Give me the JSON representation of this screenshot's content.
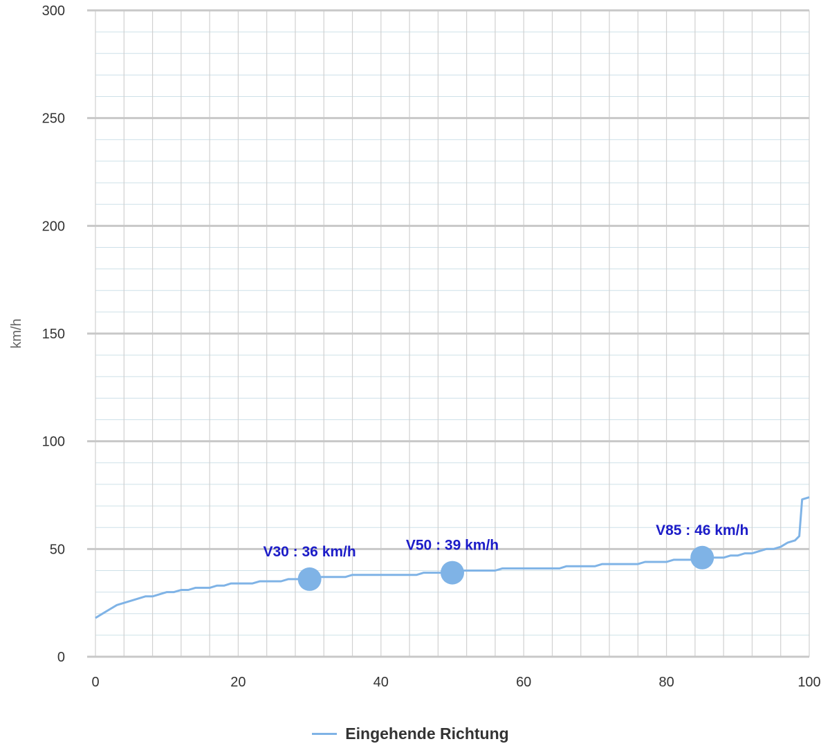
{
  "chart_data": {
    "type": "line",
    "title": "",
    "xlabel": "",
    "ylabel": "km/h",
    "xlim": [
      0,
      100
    ],
    "ylim": [
      0,
      300
    ],
    "x_ticks": [
      "0",
      "20",
      "40",
      "60",
      "80",
      "100"
    ],
    "y_ticks": [
      "0",
      "50",
      "100",
      "150",
      "200",
      "250",
      "300"
    ],
    "grid": true,
    "legend_position": "bottom",
    "series": [
      {
        "name": "Eingehende Richtung",
        "color": "#7fb3e6",
        "x": [
          0,
          1,
          2,
          3,
          4,
          5,
          6,
          7,
          8,
          9,
          10,
          11,
          12,
          13,
          14,
          15,
          16,
          17,
          18,
          19,
          20,
          21,
          22,
          23,
          24,
          25,
          26,
          27,
          28,
          29,
          30,
          31,
          32,
          33,
          34,
          35,
          36,
          37,
          38,
          39,
          40,
          41,
          42,
          43,
          44,
          45,
          46,
          47,
          48,
          49,
          50,
          51,
          52,
          53,
          54,
          55,
          56,
          57,
          58,
          59,
          60,
          61,
          62,
          63,
          64,
          65,
          66,
          67,
          68,
          69,
          70,
          71,
          72,
          73,
          74,
          75,
          76,
          77,
          78,
          79,
          80,
          81,
          82,
          83,
          84,
          85,
          86,
          87,
          88,
          89,
          90,
          91,
          92,
          93,
          94,
          95,
          96,
          97,
          98,
          98.6,
          99,
          100
        ],
        "y": [
          18,
          20,
          22,
          24,
          25,
          26,
          27,
          28,
          28,
          29,
          30,
          30,
          31,
          31,
          32,
          32,
          32,
          33,
          33,
          34,
          34,
          34,
          34,
          35,
          35,
          35,
          35,
          36,
          36,
          36,
          36,
          37,
          37,
          37,
          37,
          37,
          38,
          38,
          38,
          38,
          38,
          38,
          38,
          38,
          38,
          38,
          39,
          39,
          39,
          39,
          39,
          40,
          40,
          40,
          40,
          40,
          40,
          41,
          41,
          41,
          41,
          41,
          41,
          41,
          41,
          41,
          42,
          42,
          42,
          42,
          42,
          43,
          43,
          43,
          43,
          43,
          43,
          44,
          44,
          44,
          44,
          45,
          45,
          45,
          45,
          46,
          46,
          46,
          46,
          47,
          47,
          48,
          48,
          49,
          50,
          50,
          51,
          53,
          54,
          56,
          73,
          74
        ]
      }
    ],
    "markers": [
      {
        "label": "V30 : 36 km/h",
        "x": 30,
        "y": 36
      },
      {
        "label": "V50 : 39 km/h",
        "x": 50,
        "y": 39
      },
      {
        "label": "V85 : 46 km/h",
        "x": 85,
        "y": 46
      }
    ]
  }
}
